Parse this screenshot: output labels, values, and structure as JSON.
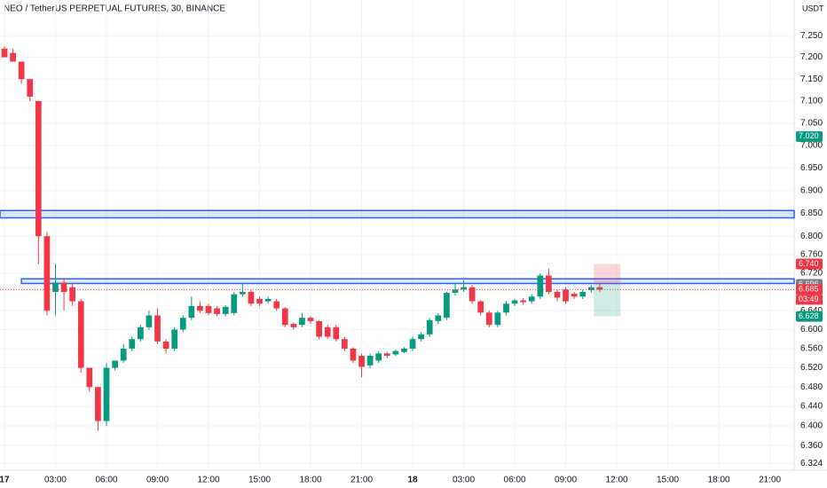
{
  "chart_data": {
    "type": "candlestick",
    "title": "NEO / TetherUS PERPETUAL FUTURES, 30, BINANCE",
    "currency": "USDT",
    "log_scale": true,
    "up_color": "#089981",
    "down_color": "#f23645",
    "x": [
      0,
      0.5,
      1,
      1.5,
      2,
      2.5,
      3,
      3.5,
      4,
      4.5,
      5,
      5.5,
      6,
      6.5,
      7,
      7.5,
      8,
      8.5,
      9,
      9.5,
      10,
      10.5,
      11,
      11.5,
      12,
      12.5,
      13,
      13.5,
      14,
      14.5,
      15,
      15.5,
      16,
      16.5,
      17,
      17.5,
      18,
      18.5,
      19,
      19.5,
      20,
      20.5,
      21,
      21.5,
      22,
      22.5,
      23,
      23.5,
      24,
      24.5,
      25,
      25.5,
      26,
      26.5,
      27,
      27.5,
      28,
      28.5,
      29,
      29.5,
      30,
      30.5,
      31,
      31.5,
      32,
      32.5,
      33,
      33.5,
      34,
      34.5,
      35
    ],
    "open": [
      7.22,
      7.21,
      7.19,
      7.15,
      7.1,
      6.8,
      6.68,
      6.7,
      6.69,
      6.66,
      6.52,
      6.48,
      6.41,
      6.52,
      6.535,
      6.56,
      6.58,
      6.605,
      6.63,
      6.575,
      6.56,
      6.6,
      6.625,
      6.65,
      6.65,
      6.645,
      6.633,
      6.635,
      6.675,
      6.68,
      6.665,
      6.66,
      6.66,
      6.645,
      6.612,
      6.61,
      6.625,
      6.618,
      6.605,
      6.605,
      6.58,
      6.56,
      6.545,
      6.525,
      6.535,
      6.55,
      6.548,
      6.553,
      6.56,
      6.58,
      6.59,
      6.618,
      6.625,
      6.678,
      6.685,
      6.69,
      6.66,
      6.636,
      6.61,
      6.636,
      6.655,
      6.662,
      6.66,
      6.67,
      6.715,
      6.68,
      6.685,
      6.676,
      6.67,
      6.684,
      6.69
    ],
    "high": [
      7.225,
      7.22,
      7.19,
      7.15,
      7.1,
      6.81,
      6.74,
      6.71,
      6.7,
      6.665,
      6.52,
      6.48,
      6.53,
      6.535,
      6.57,
      6.585,
      6.61,
      6.64,
      6.645,
      6.58,
      6.605,
      6.63,
      6.67,
      6.66,
      6.655,
      6.65,
      6.652,
      6.68,
      6.7,
      6.685,
      6.67,
      6.67,
      6.665,
      6.648,
      6.615,
      6.635,
      6.628,
      6.62,
      6.61,
      6.61,
      6.585,
      6.563,
      6.55,
      6.55,
      6.555,
      6.553,
      6.558,
      6.563,
      6.585,
      6.595,
      6.625,
      6.635,
      6.68,
      6.7,
      6.705,
      6.695,
      6.662,
      6.64,
      6.64,
      6.66,
      6.665,
      6.667,
      6.675,
      6.72,
      6.73,
      6.685,
      6.69,
      6.68,
      6.685,
      6.695,
      6.7
    ],
    "low": [
      7.2,
      7.19,
      7.14,
      7.1,
      6.74,
      6.63,
      6.63,
      6.64,
      6.65,
      6.51,
      6.47,
      6.39,
      6.4,
      6.515,
      6.53,
      6.555,
      6.575,
      6.6,
      6.57,
      6.55,
      6.555,
      6.595,
      6.62,
      6.635,
      6.63,
      6.628,
      6.628,
      6.63,
      6.67,
      6.65,
      6.65,
      6.655,
      6.64,
      6.605,
      6.6,
      6.605,
      6.612,
      6.58,
      6.58,
      6.575,
      6.555,
      6.53,
      6.5,
      6.52,
      6.53,
      6.54,
      6.545,
      6.55,
      6.555,
      6.575,
      6.585,
      6.612,
      6.62,
      6.672,
      6.68,
      6.655,
      6.63,
      6.605,
      6.605,
      6.63,
      6.65,
      6.652,
      6.655,
      6.665,
      6.675,
      6.66,
      6.655,
      6.665,
      6.665,
      6.678,
      6.68
    ],
    "close": [
      7.2,
      7.19,
      7.15,
      7.11,
      6.8,
      6.64,
      6.7,
      6.68,
      6.66,
      6.52,
      6.48,
      6.41,
      6.52,
      6.535,
      6.56,
      6.58,
      6.605,
      6.63,
      6.575,
      6.56,
      6.6,
      6.625,
      6.65,
      6.64,
      6.635,
      6.633,
      6.648,
      6.675,
      6.68,
      6.655,
      6.655,
      6.665,
      6.645,
      6.61,
      6.605,
      6.625,
      6.618,
      6.585,
      6.585,
      6.58,
      6.56,
      6.535,
      6.522,
      6.545,
      6.55,
      6.545,
      6.555,
      6.56,
      6.58,
      6.59,
      6.62,
      6.63,
      6.678,
      6.685,
      6.69,
      6.66,
      6.636,
      6.61,
      6.636,
      6.655,
      6.662,
      6.658,
      6.67,
      6.715,
      6.68,
      6.668,
      6.66,
      6.67,
      6.68,
      6.69,
      6.685
    ],
    "xlim": [
      -0.26,
      46.43
    ],
    "ylim": [
      6.31,
      7.333
    ],
    "xticks": [
      {
        "value": 0,
        "label": "17"
      },
      {
        "value": 3,
        "label": "03:00"
      },
      {
        "value": 6,
        "label": "06:00"
      },
      {
        "value": 9,
        "label": "09:00"
      },
      {
        "value": 12,
        "label": "12:00"
      },
      {
        "value": 15,
        "label": "15:00"
      },
      {
        "value": 18,
        "label": "18:00"
      },
      {
        "value": 21,
        "label": "21:00"
      },
      {
        "value": 24,
        "label": "18"
      },
      {
        "value": 27,
        "label": "03:00"
      },
      {
        "value": 30,
        "label": "06:00"
      },
      {
        "value": 33,
        "label": "09:00"
      },
      {
        "value": 36,
        "label": "12:00"
      },
      {
        "value": 39,
        "label": "15:00"
      },
      {
        "value": 42,
        "label": "18:00"
      },
      {
        "value": 45,
        "label": "21:00"
      }
    ],
    "yticks": [
      {
        "value": 7.25,
        "label": "7.250"
      },
      {
        "value": 7.2,
        "label": "7.200"
      },
      {
        "value": 7.15,
        "label": "7.150"
      },
      {
        "value": 7.1,
        "label": "7.100"
      },
      {
        "value": 7.05,
        "label": "7.050"
      },
      {
        "value": 7,
        "label": "7.000"
      },
      {
        "value": 6.95,
        "label": "6.950"
      },
      {
        "value": 6.9,
        "label": "6.900"
      },
      {
        "value": 6.85,
        "label": "6.850"
      },
      {
        "value": 6.8,
        "label": "6.800"
      },
      {
        "value": 6.76,
        "label": "6.760"
      },
      {
        "value": 6.72,
        "label": "6.720"
      },
      {
        "value": 6.64,
        "label": "6.640"
      },
      {
        "value": 6.6,
        "label": "6.600"
      },
      {
        "value": 6.56,
        "label": "6.560"
      },
      {
        "value": 6.52,
        "label": "6.520"
      },
      {
        "value": 6.48,
        "label": "6.480"
      },
      {
        "value": 6.44,
        "label": "6.440"
      },
      {
        "value": 6.4,
        "label": "6.400"
      },
      {
        "value": 6.36,
        "label": "6.360"
      },
      {
        "value": 6.324,
        "label": "6.324"
      }
    ],
    "grid": true,
    "zones": [
      {
        "low": 6.84,
        "high": 6.856,
        "x_start": -0.26
      },
      {
        "low": 6.698,
        "high": 6.708,
        "x_start": 1
      }
    ],
    "zone_color": "#2962ff",
    "position": {
      "stop": 6.74,
      "entry": 6.696,
      "target": 6.628
    },
    "price_badges": [
      {
        "value": 7.02,
        "label": "7.020",
        "color": "#089981"
      },
      {
        "value": 6.74,
        "label": "6.740",
        "color": "#f23645"
      },
      {
        "value": 6.696,
        "label": "6.696",
        "color": "#787b86"
      },
      {
        "value": 6.685,
        "label": "6.685",
        "color": "#f23645"
      },
      {
        "value": 6.628,
        "label": "6.628",
        "color": "#089981"
      }
    ],
    "countdown": "03:49"
  }
}
